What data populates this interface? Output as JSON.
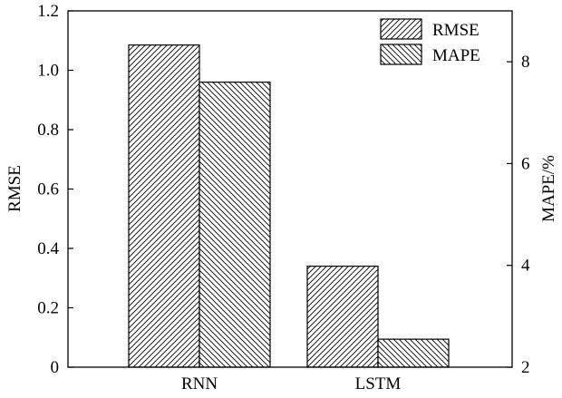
{
  "chart_data": {
    "type": "bar",
    "categories": [
      "RNN",
      "LSTM"
    ],
    "series": [
      {
        "name": "RMSE",
        "axis": "left",
        "values": [
          1.085,
          0.34
        ],
        "pattern": "forward-hatch"
      },
      {
        "name": "MAPE",
        "axis": "right",
        "values": [
          7.6,
          2.55
        ],
        "pattern": "back-hatch"
      }
    ],
    "ylabel": "RMSE",
    "ylabel_right": "MAPE/%",
    "ylim": [
      0,
      1.2
    ],
    "ylim_right": [
      2,
      9
    ],
    "yticks": [
      "0",
      "0.2",
      "0.4",
      "0.6",
      "0.8",
      "1.0",
      "1.2"
    ],
    "yticks_right": [
      "2",
      "4",
      "6",
      "8"
    ],
    "grid": false,
    "legend_position": "top-right"
  }
}
